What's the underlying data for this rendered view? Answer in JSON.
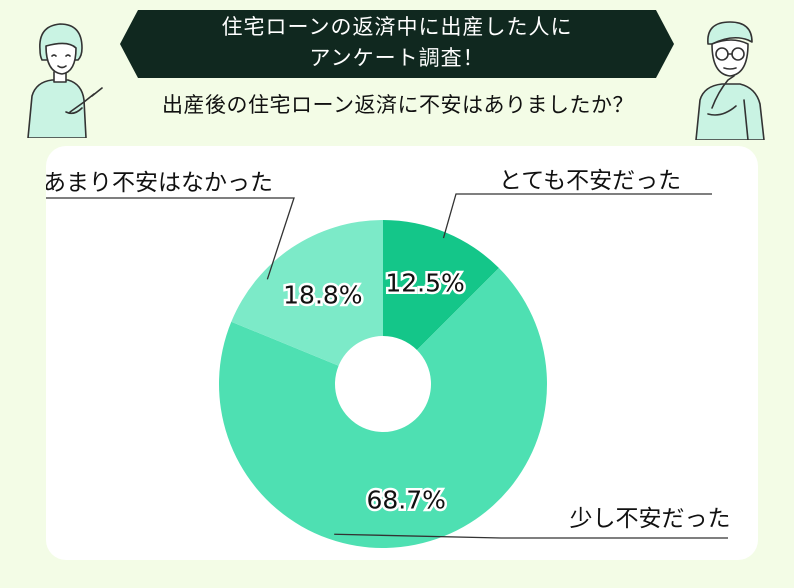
{
  "header": {
    "banner_line1": "住宅ローンの返済中に出産した人に",
    "banner_line2": "アンケート調査！",
    "question": "出産後の住宅ローン返済に不安はありましたか？"
  },
  "colors": {
    "page_bg": "#f3fce6",
    "banner_bg": "#10281f",
    "slice_very": "#14c689",
    "slice_somewhat": "#4ee0b2",
    "slice_not_much": "#7ceac8",
    "character_fill": "#c9f3e3",
    "line": "#333333"
  },
  "chart_data": {
    "type": "pie",
    "donut": true,
    "start_angle_deg": 0,
    "direction": "clockwise",
    "categories": [
      "とても不安だった",
      "少し不安だった",
      "あまり不安はなかった"
    ],
    "values": [
      12.5,
      68.7,
      18.8
    ],
    "value_labels": [
      "12.5%",
      "68.7%",
      "18.8%"
    ],
    "title": "",
    "legend": "none"
  },
  "characters": {
    "left": "woman-pointing-icon",
    "right": "man-thinking-icon"
  }
}
